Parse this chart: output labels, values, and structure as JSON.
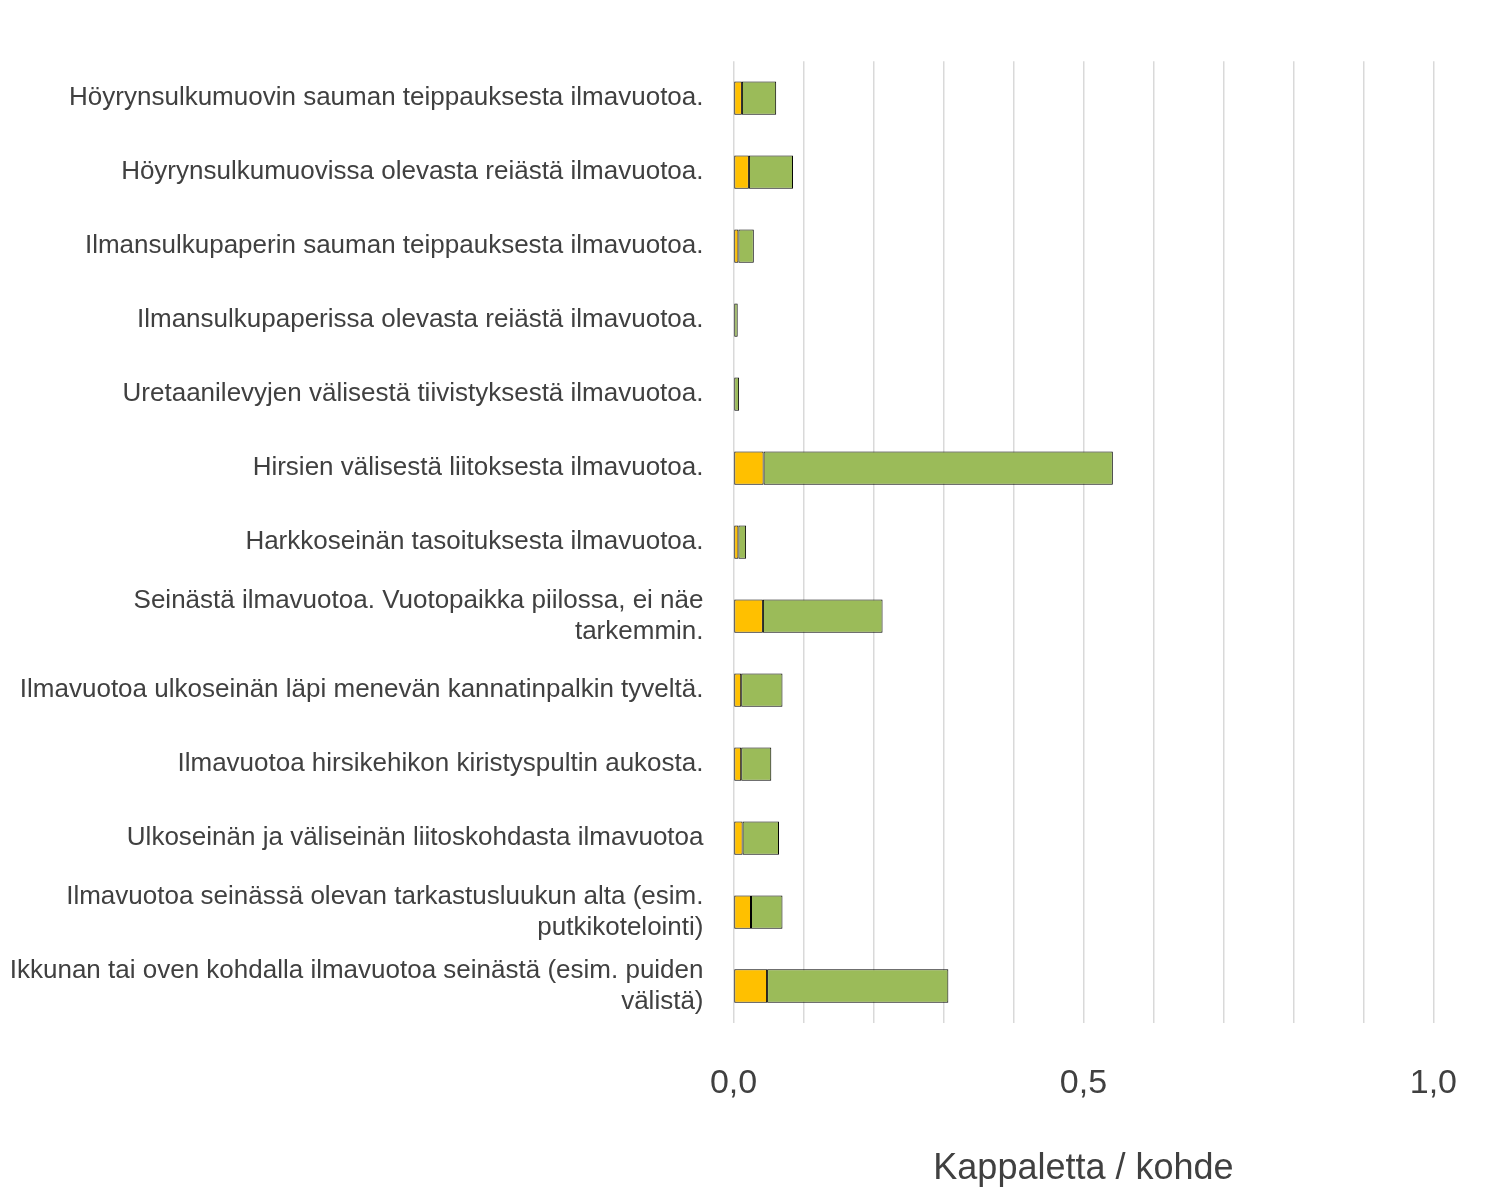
{
  "chart_data": {
    "type": "bar",
    "orientation": "horizontal",
    "stacked": true,
    "xlabel": "Kappaletta / kohde",
    "categories": [
      "Höyrynsulkumuovin sauman teippauksesta ilmavuotoa.",
      "Höyrynsulkumuovissa olevasta reiästä ilmavuotoa.",
      "Ilmansulkupaperin sauman teippauksesta ilmavuotoa.",
      "Ilmansulkupaperissa olevasta reiästä ilmavuotoa.",
      "Uretaanilevyjen välisestä tiivistyksestä ilmavuotoa.",
      "Hirsien välisestä liitoksesta ilmavuotoa.",
      "Harkkoseinän tasoituksesta ilmavuotoa.",
      "Seinästä ilmavuotoa. Vuotopaikka piilossa, ei näe tarkemmin.",
      "Ilmavuotoa ulkoseinän läpi menevän kannatinpalkin tyveltä.",
      "Ilmavuotoa hirsikehikon kiristyspultin aukosta.",
      "Ulkoseinän ja väliseinän liitoskohdasta ilmavuotoa",
      "Ilmavuotoa seinässä olevan tarkastusluukun alta (esim. putkikotelointi)",
      "Ikkunan tai oven kohdalla ilmavuotoa seinästä (esim. puiden välistä)"
    ],
    "series": [
      {
        "color": "#ffc000",
        "values": [
          0.012,
          0.022,
          0.007,
          0,
          0,
          0.043,
          0.007,
          0.042,
          0.011,
          0.011,
          0.013,
          0.025,
          0.048
        ]
      },
      {
        "color": "#9bbb59",
        "values": [
          0.049,
          0.063,
          0.022,
          0.006,
          0.008,
          0.499,
          0.011,
          0.171,
          0.059,
          0.043,
          0.052,
          0.045,
          0.259
        ]
      }
    ],
    "xlim": [
      0,
      1
    ],
    "xticks": [
      {
        "value": 0,
        "label": "0,0"
      },
      {
        "value": 0.1,
        "label": null
      },
      {
        "value": 0.2,
        "label": null
      },
      {
        "value": 0.3,
        "label": null
      },
      {
        "value": 0.4,
        "label": null
      },
      {
        "value": 0.5,
        "label": "0,5"
      },
      {
        "value": 0.6,
        "label": null
      },
      {
        "value": 0.7,
        "label": null
      },
      {
        "value": 0.8,
        "label": null
      },
      {
        "value": 0.9,
        "label": null
      },
      {
        "value": 1,
        "label": "1,0"
      }
    ],
    "grid": "x",
    "legend": false
  }
}
